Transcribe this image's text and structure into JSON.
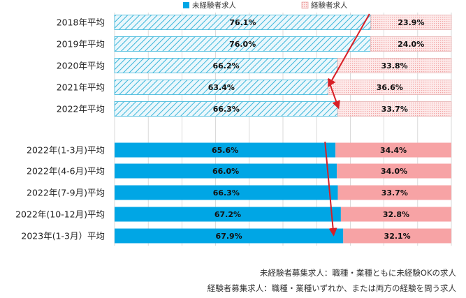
{
  "chart_data": {
    "type": "bar",
    "orientation": "horizontal",
    "stacked": true,
    "percent_stacked": true,
    "categories": [
      "2018年平均",
      "2019年平均",
      "2020年平均",
      "2021年平均",
      "2022年平均",
      "2022年(1-3月)平均",
      "2022年(4-6月)平均",
      "2022年(7-9月)平均",
      "2022年(10-12月)平均",
      "2023年(1-3月）平均"
    ],
    "series": [
      {
        "name": "未経験者求人",
        "values": [
          76.1,
          76.0,
          66.2,
          63.4,
          66.3,
          65.6,
          66.0,
          66.3,
          67.2,
          67.9
        ]
      },
      {
        "name": "経験者求人",
        "values": [
          23.9,
          24.0,
          33.8,
          36.6,
          33.7,
          34.4,
          34.0,
          33.7,
          32.8,
          32.1
        ]
      }
    ],
    "data_labels": [
      [
        "76.1%",
        "76.0%",
        "66.2%",
        "63.4%",
        "66.3%",
        "65.6%",
        "66.0%",
        "66.3%",
        "67.2%",
        "67.9%"
      ],
      [
        "23.9%",
        "24.0%",
        "33.8%",
        "36.6%",
        "33.7%",
        "34.4%",
        "34.0%",
        "33.7%",
        "32.8%",
        "32.1%"
      ]
    ],
    "xlim": [
      0,
      100
    ],
    "legend": "top-center",
    "grid": true,
    "colors": {
      "unexperienced_solid": "#00a6e5",
      "unexperienced_hatch": "#3bb6da",
      "experienced_solid": "#f7a3a5",
      "experienced_hatch": "#f2a7a7",
      "arrow": "#d81f26"
    }
  },
  "notes": [
    "未経験者募集求人：職種・業種ともに未経験OKの求人",
    "経験者募集求人：職種・業種いずれか、または両方の経験を問う求人"
  ]
}
